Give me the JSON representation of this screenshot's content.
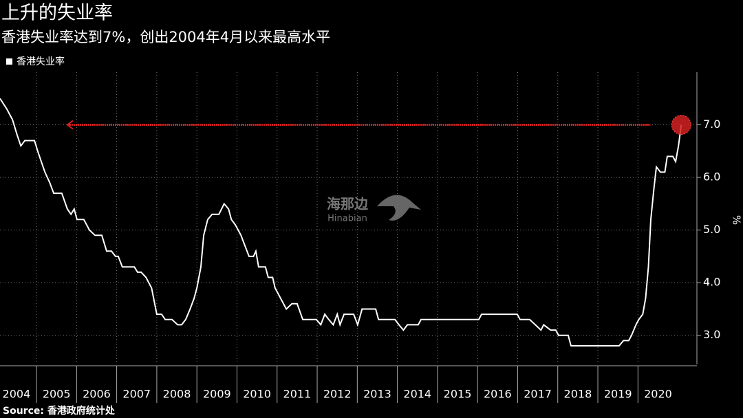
{
  "chart_data": {
    "type": "line",
    "title": "上升的失业率",
    "subtitle": "香港失业率达到7%，创出2004年4月以来最高水平",
    "ylabel": "%",
    "source": "Source: 香港政府统计处",
    "watermark": [
      "海那边",
      "Hinabian"
    ],
    "legend": "top-left",
    "grid": true,
    "xlim": [
      2004.09,
      2021.47
    ],
    "ylim": [
      2.5,
      8.0
    ],
    "yticks": [
      {
        "value": 3.0,
        "label": "3.0"
      },
      {
        "value": 4.0,
        "label": "4.0"
      },
      {
        "value": 5.0,
        "label": "5.0"
      },
      {
        "value": 6.0,
        "label": "6.0"
      },
      {
        "value": 7.0,
        "label": "7.0"
      }
    ],
    "xticks": [
      {
        "value": 2004.5,
        "label": "2004"
      },
      {
        "value": 2005.5,
        "label": "2005"
      },
      {
        "value": 2006.5,
        "label": "2006"
      },
      {
        "value": 2007.5,
        "label": "2007"
      },
      {
        "value": 2008.5,
        "label": "2008"
      },
      {
        "value": 2009.5,
        "label": "2009"
      },
      {
        "value": 2010.5,
        "label": "2010"
      },
      {
        "value": 2011.5,
        "label": "2011"
      },
      {
        "value": 2012.5,
        "label": "2012"
      },
      {
        "value": 2013.5,
        "label": "2013"
      },
      {
        "value": 2014.5,
        "label": "2014"
      },
      {
        "value": 2015.5,
        "label": "2015"
      },
      {
        "value": 2016.5,
        "label": "2016"
      },
      {
        "value": 2017.5,
        "label": "2017"
      },
      {
        "value": 2018.5,
        "label": "2018"
      },
      {
        "value": 2019.5,
        "label": "2019"
      },
      {
        "value": 2020.5,
        "label": "2020"
      }
    ],
    "xgrid": [
      2005,
      2006,
      2007,
      2008,
      2009,
      2010,
      2011,
      2012,
      2013,
      2014,
      2015,
      2016,
      2017,
      2018,
      2019,
      2020
    ],
    "highlight": {
      "value": 7.0,
      "from": 2005.77,
      "to": 2020.31,
      "color": "#d42020"
    },
    "x": [
      2004.09,
      2004.26,
      2004.4,
      2004.52,
      2004.61,
      2004.71,
      2004.95,
      2005.03,
      2005.12,
      2005.21,
      2005.33,
      2005.43,
      2005.63,
      2005.77,
      2005.86,
      2005.94,
      2006.01,
      2006.18,
      2006.32,
      2006.46,
      2006.63,
      2006.75,
      2006.87,
      2006.97,
      2007.04,
      2007.14,
      2007.44,
      2007.52,
      2007.61,
      2007.73,
      2007.87,
      2008.0,
      2008.12,
      2008.21,
      2008.38,
      2008.52,
      2008.62,
      2008.72,
      2008.83,
      2008.93,
      2009.0,
      2009.1,
      2009.17,
      2009.27,
      2009.38,
      2009.55,
      2009.68,
      2009.79,
      2009.86,
      2009.96,
      2010.1,
      2010.2,
      2010.3,
      2010.41,
      2010.47,
      2010.54,
      2010.65,
      2010.71,
      2010.78,
      2010.89,
      2010.95,
      2011.09,
      2011.23,
      2011.37,
      2011.5,
      2011.64,
      2011.98,
      2012.09,
      2012.19,
      2012.29,
      2012.4,
      2012.5,
      2012.57,
      2012.67,
      2012.81,
      2012.91,
      2013.01,
      2013.12,
      2013.46,
      2013.53,
      2013.94,
      2014.04,
      2014.15,
      2014.25,
      2014.52,
      2014.59,
      2016.03,
      2016.1,
      2016.99,
      2017.06,
      2017.3,
      2017.44,
      2017.58,
      2017.65,
      2017.82,
      2017.95,
      2018.02,
      2018.26,
      2018.33,
      2019.53,
      2019.64,
      2019.77,
      2019.84,
      2019.95,
      2020.02,
      2020.12,
      2020.19,
      2020.26,
      2020.32,
      2020.4,
      2020.46,
      2020.56,
      2020.67,
      2020.73,
      2020.87,
      2020.94,
      2021.01,
      2021.08
    ],
    "series": [
      {
        "name": "香港失业率",
        "color": "#ffffff",
        "values": [
          7.5,
          7.3,
          7.1,
          6.8,
          6.6,
          6.7,
          6.7,
          6.5,
          6.3,
          6.1,
          5.9,
          5.7,
          5.7,
          5.4,
          5.3,
          5.4,
          5.2,
          5.2,
          5.0,
          4.9,
          4.9,
          4.6,
          4.6,
          4.5,
          4.5,
          4.3,
          4.3,
          4.2,
          4.2,
          4.1,
          3.9,
          3.4,
          3.4,
          3.3,
          3.3,
          3.2,
          3.2,
          3.3,
          3.5,
          3.7,
          3.9,
          4.3,
          4.9,
          5.2,
          5.3,
          5.3,
          5.5,
          5.4,
          5.2,
          5.1,
          4.9,
          4.7,
          4.5,
          4.5,
          4.6,
          4.3,
          4.3,
          4.3,
          4.1,
          4.1,
          3.9,
          3.7,
          3.5,
          3.6,
          3.6,
          3.3,
          3.3,
          3.2,
          3.4,
          3.3,
          3.2,
          3.4,
          3.2,
          3.4,
          3.4,
          3.4,
          3.2,
          3.5,
          3.5,
          3.3,
          3.3,
          3.2,
          3.1,
          3.2,
          3.2,
          3.3,
          3.3,
          3.4,
          3.4,
          3.3,
          3.3,
          3.2,
          3.1,
          3.2,
          3.1,
          3.1,
          3.0,
          3.0,
          2.8,
          2.8,
          2.9,
          2.9,
          3.0,
          3.2,
          3.3,
          3.4,
          3.7,
          4.3,
          5.2,
          5.8,
          6.2,
          6.1,
          6.1,
          6.4,
          6.4,
          6.3,
          6.6,
          7.0
        ]
      }
    ]
  }
}
